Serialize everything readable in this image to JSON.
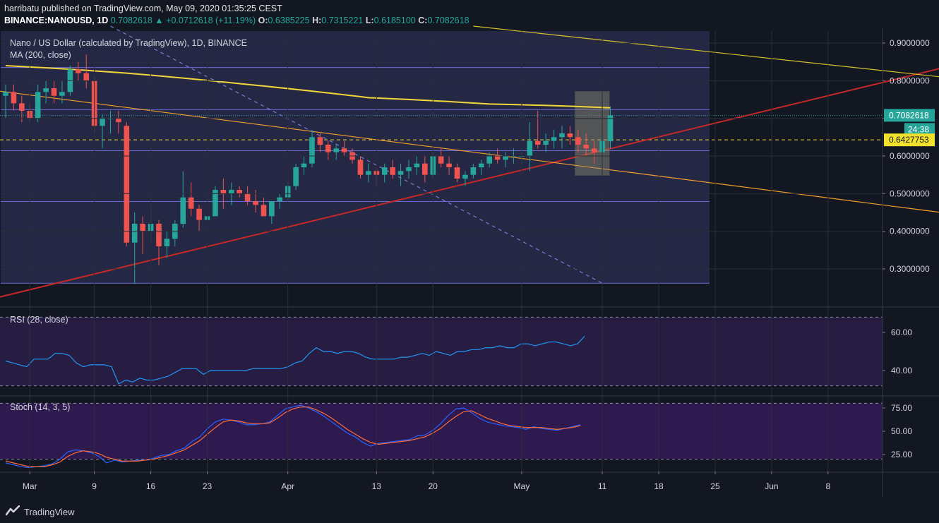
{
  "header": {
    "published": "harribatu published on TradingView.com, May 09, 2020 01:35:25 CEST",
    "symbol": "BINANCE:NANOUSD, 1D",
    "price": "0.7082618",
    "change": "+0.0712618 (+11.19%)",
    "change_arrow": "▲",
    "o_label": "O:",
    "o_value": "0.6385225",
    "h_label": "H:",
    "h_value": "0.7315221",
    "l_label": "L:",
    "l_value": "0.6185100",
    "c_label": "C:",
    "c_value": "0.7082618"
  },
  "pane_labels": {
    "title": "Nano / US Dollar (calculated by TradingView), 1D, BINANCE",
    "ma": "MA (200, close)",
    "rsi": "RSI (28, close)",
    "stoch": "Stoch (14, 3, 5)"
  },
  "price_badges": {
    "last": "0.7082618",
    "countdown": "24:38",
    "hline": "0.6427753"
  },
  "footer": {
    "brand": "TradingView"
  },
  "colors": {
    "up": "#26a69a",
    "down": "#ef5350",
    "ma": "#f2d73a",
    "trend_red": "#c62828",
    "trend_orange": "#f5a02a",
    "trend_yellow": "#d4c22a",
    "box": "#5656b0",
    "bg": "#131722",
    "rsi": "#2196f3",
    "stoch_k": "#2962ff",
    "stoch_d": "#ff6d3a"
  },
  "chart_data": [
    {
      "type": "candlestick",
      "title": "Nano / US Dollar (calculated by TradingView), 1D, BINANCE",
      "x_ticks": [
        "Mar",
        "9",
        "16",
        "23",
        "Apr",
        "13",
        "20",
        "May",
        "11",
        "18",
        "25",
        "Jun",
        "8"
      ],
      "y_ticks": [
        "0.9000000",
        "0.8000000",
        "0.7000000",
        "0.6000000",
        "0.5000000",
        "0.4000000",
        "0.3000000"
      ],
      "ylim": [
        0.22,
        0.94
      ],
      "start_date": "2020-02-26",
      "candles": [
        [
          0.76,
          0.79,
          0.7,
          0.77
        ],
        [
          0.77,
          0.79,
          0.72,
          0.74
        ],
        [
          0.74,
          0.76,
          0.69,
          0.72
        ],
        [
          0.72,
          0.74,
          0.69,
          0.7
        ],
        [
          0.7,
          0.79,
          0.69,
          0.77
        ],
        [
          0.77,
          0.8,
          0.74,
          0.78
        ],
        [
          0.78,
          0.8,
          0.74,
          0.76
        ],
        [
          0.76,
          0.8,
          0.74,
          0.77
        ],
        [
          0.77,
          0.84,
          0.76,
          0.83
        ],
        [
          0.83,
          0.85,
          0.8,
          0.82
        ],
        [
          0.82,
          0.87,
          0.78,
          0.8
        ],
        [
          0.8,
          0.81,
          0.66,
          0.68
        ],
        [
          0.68,
          0.71,
          0.62,
          0.7
        ],
        [
          0.7,
          0.72,
          0.66,
          0.7
        ],
        [
          0.7,
          0.72,
          0.66,
          0.69
        ],
        [
          0.68,
          0.69,
          0.36,
          0.37
        ],
        [
          0.37,
          0.45,
          0.26,
          0.42
        ],
        [
          0.42,
          0.44,
          0.34,
          0.4
        ],
        [
          0.4,
          0.47,
          0.37,
          0.42
        ],
        [
          0.42,
          0.43,
          0.31,
          0.36
        ],
        [
          0.36,
          0.4,
          0.33,
          0.38
        ],
        [
          0.38,
          0.43,
          0.36,
          0.42
        ],
        [
          0.42,
          0.56,
          0.41,
          0.49
        ],
        [
          0.49,
          0.53,
          0.44,
          0.46
        ],
        [
          0.46,
          0.47,
          0.4,
          0.43
        ],
        [
          0.43,
          0.5,
          0.42,
          0.44
        ],
        [
          0.44,
          0.52,
          0.44,
          0.51
        ],
        [
          0.51,
          0.54,
          0.46,
          0.5
        ],
        [
          0.5,
          0.53,
          0.47,
          0.51
        ],
        [
          0.51,
          0.52,
          0.49,
          0.5
        ],
        [
          0.5,
          0.52,
          0.47,
          0.48
        ],
        [
          0.48,
          0.51,
          0.45,
          0.47
        ],
        [
          0.47,
          0.49,
          0.44,
          0.44
        ],
        [
          0.44,
          0.48,
          0.42,
          0.48
        ],
        [
          0.48,
          0.5,
          0.46,
          0.49
        ],
        [
          0.49,
          0.53,
          0.48,
          0.52
        ],
        [
          0.52,
          0.58,
          0.51,
          0.57
        ],
        [
          0.57,
          0.6,
          0.55,
          0.58
        ],
        [
          0.58,
          0.67,
          0.57,
          0.65
        ],
        [
          0.65,
          0.66,
          0.61,
          0.63
        ],
        [
          0.63,
          0.64,
          0.59,
          0.61
        ],
        [
          0.61,
          0.63,
          0.59,
          0.62
        ],
        [
          0.62,
          0.64,
          0.6,
          0.61
        ],
        [
          0.61,
          0.62,
          0.58,
          0.59
        ],
        [
          0.59,
          0.6,
          0.54,
          0.55
        ],
        [
          0.55,
          0.58,
          0.53,
          0.56
        ],
        [
          0.56,
          0.57,
          0.52,
          0.55
        ],
        [
          0.55,
          0.58,
          0.53,
          0.57
        ],
        [
          0.57,
          0.59,
          0.54,
          0.55
        ],
        [
          0.55,
          0.58,
          0.52,
          0.56
        ],
        [
          0.56,
          0.59,
          0.54,
          0.57
        ],
        [
          0.57,
          0.6,
          0.55,
          0.58
        ],
        [
          0.58,
          0.6,
          0.53,
          0.55
        ],
        [
          0.55,
          0.61,
          0.54,
          0.6
        ],
        [
          0.6,
          0.62,
          0.57,
          0.58
        ],
        [
          0.58,
          0.6,
          0.55,
          0.57
        ],
        [
          0.57,
          0.58,
          0.53,
          0.54
        ],
        [
          0.54,
          0.56,
          0.52,
          0.55
        ],
        [
          0.55,
          0.58,
          0.54,
          0.57
        ],
        [
          0.57,
          0.59,
          0.55,
          0.58
        ],
        [
          0.58,
          0.61,
          0.57,
          0.6
        ],
        [
          0.6,
          0.62,
          0.58,
          0.59
        ],
        [
          0.59,
          0.61,
          0.57,
          0.6
        ],
        [
          0.6,
          0.62,
          0.58,
          0.6
        ],
        [
          0.6,
          0.62,
          0.58,
          0.6
        ],
        [
          0.6,
          0.69,
          0.56,
          0.64
        ],
        [
          0.64,
          0.72,
          0.62,
          0.63
        ],
        [
          0.63,
          0.66,
          0.61,
          0.64
        ],
        [
          0.64,
          0.67,
          0.62,
          0.65
        ],
        [
          0.65,
          0.68,
          0.62,
          0.66
        ],
        [
          0.66,
          0.68,
          0.63,
          0.65
        ],
        [
          0.65,
          0.67,
          0.61,
          0.63
        ],
        [
          0.63,
          0.66,
          0.6,
          0.62
        ],
        [
          0.62,
          0.64,
          0.58,
          0.61
        ],
        [
          0.61,
          0.65,
          0.57,
          0.64
        ],
        [
          0.639,
          0.732,
          0.619,
          0.708
        ]
      ],
      "ma200": [
        [
          0,
          0.84
        ],
        [
          15,
          0.82
        ],
        [
          30,
          0.79
        ],
        [
          45,
          0.755
        ],
        [
          60,
          0.738
        ],
        [
          75,
          0.728
        ]
      ],
      "horizontal_levels": [
        0.835,
        0.723,
        0.614,
        0.479,
        0.262
      ],
      "dashed_level": 0.6427753,
      "trend_lines": [
        {
          "color": "red",
          "from": [
            -1,
            0.224
          ],
          "to": [
            116,
            0.833
          ]
        },
        {
          "color": "orange",
          "from": [
            -1,
            0.773
          ],
          "to": [
            116,
            0.45
          ]
        },
        {
          "color": "yellow",
          "from": [
            58,
            0.945
          ],
          "to": [
            116,
            0.81
          ]
        },
        {
          "color": "dashed",
          "from": [
            13,
            0.945
          ],
          "to": [
            74,
            0.262
          ]
        }
      ]
    },
    {
      "type": "line",
      "title": "RSI (28, close)",
      "y_ticks": [
        "60.00",
        "40.00"
      ],
      "ylim": [
        30,
        70
      ],
      "bands": [
        68,
        32
      ],
      "values": [
        45,
        44,
        43,
        42,
        46,
        46,
        46,
        49,
        49,
        48,
        44,
        42,
        43,
        43,
        43,
        42,
        33,
        35,
        34,
        36,
        35,
        35,
        36,
        37,
        39,
        41,
        41,
        41,
        38,
        40,
        40,
        40,
        40,
        40,
        40,
        41,
        41,
        41,
        41,
        41,
        42,
        44,
        45,
        49,
        52,
        50,
        50,
        49,
        50,
        50,
        49,
        47,
        46,
        46,
        46,
        46,
        47,
        47,
        48,
        49,
        48,
        50,
        49,
        48,
        50,
        50,
        51,
        51,
        52,
        52,
        53,
        52,
        52,
        54,
        54,
        53,
        54,
        55,
        55,
        54,
        53,
        54,
        58
      ]
    },
    {
      "type": "line",
      "title": "Stoch (14, 3, 5)",
      "y_ticks": [
        "75.00",
        "50.00",
        "25.00"
      ],
      "ylim": [
        0,
        100
      ],
      "bands": [
        80,
        20
      ],
      "k": [
        16,
        14,
        12,
        11,
        12,
        13,
        15,
        20,
        28,
        30,
        29,
        27,
        23,
        16,
        19,
        17,
        18,
        19,
        19,
        21,
        24,
        25,
        29,
        32,
        39,
        44,
        53,
        60,
        63,
        62,
        60,
        57,
        57,
        58,
        60,
        67,
        74,
        76,
        78,
        75,
        71,
        66,
        60,
        54,
        48,
        44,
        38,
        34,
        37,
        38,
        39,
        40,
        41,
        45,
        46,
        51,
        58,
        67,
        74,
        75,
        70,
        64,
        60,
        58,
        56,
        55,
        54,
        52,
        55,
        53,
        52,
        51,
        53,
        55,
        57
      ],
      "d": [
        18,
        16,
        14,
        12,
        12,
        12,
        14,
        17,
        23,
        27,
        29,
        28,
        26,
        22,
        20,
        18,
        18,
        18,
        19,
        20,
        22,
        24,
        27,
        30,
        35,
        40,
        47,
        54,
        60,
        62,
        61,
        59,
        58,
        58,
        59,
        64,
        70,
        74,
        76,
        76,
        73,
        69,
        64,
        58,
        52,
        47,
        42,
        38,
        36,
        37,
        38,
        39,
        40,
        42,
        44,
        48,
        53,
        60,
        66,
        71,
        72,
        68,
        64,
        61,
        58,
        56,
        55,
        54,
        54,
        54,
        53,
        52,
        53,
        54,
        56
      ]
    }
  ]
}
